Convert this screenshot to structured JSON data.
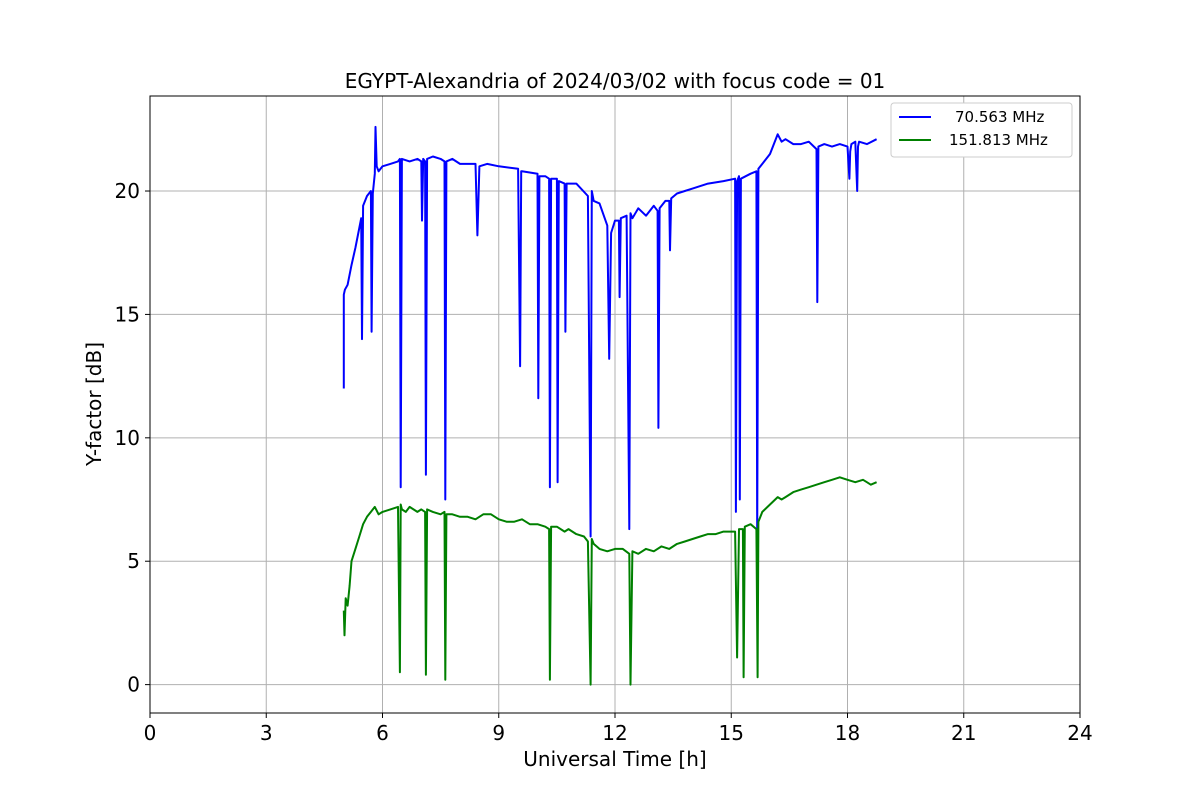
{
  "chart_data": {
    "type": "line",
    "title": "EGYPT-Alexandria of 2024/03/02 with focus code = 01",
    "xlabel": "Universal Time [h]",
    "ylabel": "Y-factor [dB]",
    "xlim": [
      0,
      24
    ],
    "ylim": [
      -1.15,
      23.85
    ],
    "xticks": [
      0,
      3,
      6,
      9,
      12,
      15,
      18,
      21,
      24
    ],
    "yticks": [
      0,
      5,
      10,
      15,
      20
    ],
    "grid": true,
    "legend_position": "top-right",
    "series": [
      {
        "name": "70.563 MHz",
        "color": "#0000ff",
        "x": [
          5.0,
          5.0,
          5.03,
          5.1,
          5.2,
          5.3,
          5.4,
          5.45,
          5.47,
          5.5,
          5.6,
          5.7,
          5.72,
          5.75,
          5.8,
          5.82,
          5.85,
          5.9,
          6.0,
          6.2,
          6.4,
          6.45,
          6.47,
          6.5,
          6.7,
          6.9,
          7.0,
          7.02,
          7.05,
          7.1,
          7.12,
          7.15,
          7.3,
          7.5,
          7.6,
          7.62,
          7.65,
          7.8,
          8.0,
          8.4,
          8.45,
          8.5,
          8.7,
          9.0,
          9.5,
          9.55,
          9.58,
          9.6,
          10.0,
          10.02,
          10.05,
          10.2,
          10.3,
          10.32,
          10.35,
          10.5,
          10.52,
          10.55,
          10.7,
          10.72,
          10.75,
          11.0,
          11.3,
          11.37,
          11.4,
          11.45,
          11.6,
          11.8,
          11.85,
          11.9,
          12.0,
          12.1,
          12.12,
          12.15,
          12.3,
          12.37,
          12.4,
          12.45,
          12.6,
          12.8,
          13.0,
          13.1,
          13.12,
          13.15,
          13.3,
          13.4,
          13.42,
          13.45,
          13.6,
          13.8,
          14.0,
          14.4,
          14.8,
          15.1,
          15.12,
          15.15,
          15.2,
          15.22,
          15.25,
          15.5,
          15.65,
          15.67,
          15.7,
          15.8,
          16.0,
          16.2,
          16.3,
          16.4,
          16.6,
          16.8,
          17.0,
          17.2,
          17.22,
          17.25,
          17.4,
          17.6,
          17.8,
          18.0,
          18.05,
          18.07,
          18.1,
          18.2,
          18.25,
          18.27,
          18.3,
          18.5,
          18.75
        ],
        "y": [
          12.0,
          15.8,
          16.0,
          16.2,
          17.0,
          17.7,
          18.5,
          18.9,
          14.0,
          19.4,
          19.8,
          20.0,
          14.3,
          19.9,
          20.7,
          22.6,
          21.0,
          20.8,
          21.0,
          21.1,
          21.2,
          21.3,
          8.0,
          21.3,
          21.2,
          21.3,
          21.2,
          18.8,
          21.3,
          21.2,
          8.5,
          21.3,
          21.4,
          21.3,
          21.2,
          7.5,
          21.2,
          21.3,
          21.1,
          21.1,
          18.2,
          21.0,
          21.1,
          21.0,
          20.9,
          12.9,
          20.8,
          20.8,
          20.7,
          11.6,
          20.6,
          20.6,
          20.5,
          8.0,
          20.5,
          20.5,
          8.2,
          20.4,
          20.3,
          14.3,
          20.3,
          20.3,
          19.8,
          6.0,
          20.0,
          19.6,
          19.5,
          18.6,
          13.2,
          18.3,
          18.8,
          18.8,
          15.7,
          18.9,
          19.0,
          6.3,
          19.1,
          18.9,
          19.3,
          19.0,
          19.4,
          19.2,
          10.4,
          19.3,
          19.6,
          19.6,
          17.6,
          19.7,
          19.9,
          20.0,
          20.1,
          20.3,
          20.4,
          20.5,
          7.0,
          20.4,
          20.6,
          7.5,
          20.5,
          20.7,
          20.8,
          6.0,
          20.9,
          21.1,
          21.5,
          22.3,
          22.0,
          22.1,
          21.9,
          21.9,
          22.0,
          21.7,
          15.5,
          21.8,
          21.9,
          21.8,
          21.9,
          21.8,
          20.5,
          21.6,
          21.9,
          22.0,
          20.0,
          21.8,
          22.0,
          21.9,
          22.1
        ]
      },
      {
        "name": "151.813 MHz",
        "color": "#008000",
        "x": [
          5.0,
          5.02,
          5.05,
          5.1,
          5.15,
          5.2,
          5.3,
          5.4,
          5.5,
          5.6,
          5.7,
          5.8,
          5.9,
          6.0,
          6.2,
          6.4,
          6.45,
          6.47,
          6.5,
          6.6,
          6.7,
          6.8,
          6.9,
          7.0,
          7.1,
          7.12,
          7.15,
          7.3,
          7.5,
          7.6,
          7.62,
          7.65,
          7.8,
          8.0,
          8.2,
          8.4,
          8.6,
          8.8,
          9.0,
          9.2,
          9.4,
          9.6,
          9.8,
          10.0,
          10.2,
          10.3,
          10.32,
          10.35,
          10.5,
          10.7,
          10.8,
          11.0,
          11.2,
          11.3,
          11.37,
          11.4,
          11.45,
          11.6,
          11.8,
          12.0,
          12.2,
          12.37,
          12.4,
          12.45,
          12.6,
          12.8,
          13.0,
          13.2,
          13.4,
          13.6,
          13.8,
          14.0,
          14.2,
          14.4,
          14.6,
          14.8,
          15.0,
          15.1,
          15.15,
          15.2,
          15.3,
          15.32,
          15.35,
          15.5,
          15.65,
          15.68,
          15.7,
          15.8,
          16.0,
          16.2,
          16.3,
          16.4,
          16.6,
          16.8,
          17.0,
          17.2,
          17.4,
          17.6,
          17.8,
          18.0,
          18.2,
          18.4,
          18.5,
          18.6,
          18.75
        ],
        "y": [
          3.0,
          2.0,
          3.5,
          3.2,
          4.0,
          5.0,
          5.5,
          6.0,
          6.5,
          6.8,
          7.0,
          7.2,
          6.9,
          7.0,
          7.1,
          7.2,
          0.5,
          7.3,
          7.1,
          7.0,
          7.2,
          7.1,
          7.0,
          7.1,
          7.0,
          0.4,
          7.1,
          7.0,
          6.9,
          7.0,
          0.2,
          6.9,
          6.9,
          6.8,
          6.8,
          6.7,
          6.9,
          6.9,
          6.7,
          6.6,
          6.6,
          6.7,
          6.5,
          6.5,
          6.4,
          6.3,
          0.2,
          6.4,
          6.4,
          6.2,
          6.3,
          6.1,
          6.0,
          5.8,
          0.0,
          5.9,
          5.7,
          5.5,
          5.4,
          5.5,
          5.5,
          5.3,
          0.0,
          5.4,
          5.3,
          5.5,
          5.4,
          5.6,
          5.5,
          5.7,
          5.8,
          5.9,
          6.0,
          6.1,
          6.1,
          6.2,
          6.2,
          6.2,
          1.1,
          6.3,
          6.3,
          0.3,
          6.4,
          6.5,
          6.3,
          0.3,
          6.6,
          7.0,
          7.3,
          7.6,
          7.5,
          7.6,
          7.8,
          7.9,
          8.0,
          8.1,
          8.2,
          8.3,
          8.4,
          8.3,
          8.2,
          8.3,
          8.2,
          8.1,
          8.2
        ]
      }
    ]
  }
}
